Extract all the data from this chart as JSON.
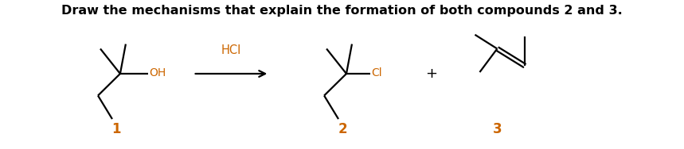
{
  "title_normal": "Draw the mechanisms that explain the formation of both compounds ",
  "title_bold_2": "2",
  "title_middle": " and ",
  "title_bold_3": "3",
  "title_end": ".",
  "background_color": "#ffffff",
  "line_color": "#000000",
  "label_color": "#cc6600",
  "line_width": 1.6,
  "fig_width": 8.59,
  "fig_height": 1.88,
  "dpi": 100,
  "label_1": "1",
  "label_2": "2",
  "label_3": "3",
  "hcl_label": "HCl",
  "oh_label": "OH",
  "cl_label": "Cl",
  "plus_label": "+"
}
